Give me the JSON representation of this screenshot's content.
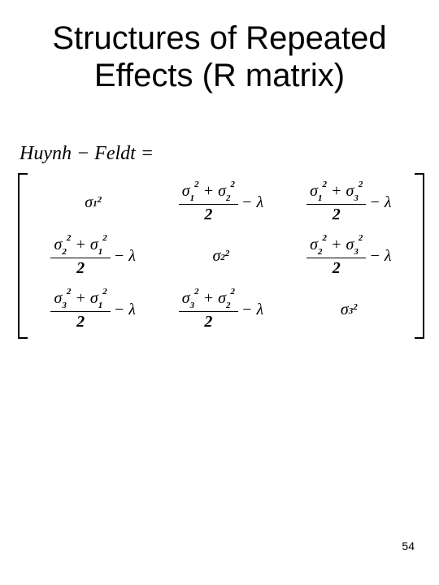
{
  "title_line1": "Structures of Repeated",
  "title_line2": "Effects (R matrix)",
  "eq_label": "Huynh − Feldt =",
  "denom": "2",
  "minus": "−",
  "lambda": "λ",
  "plus": "+",
  "sigma": "σ",
  "sq": "2",
  "idx": {
    "1": "1",
    "2": "2",
    "3": "3"
  },
  "pagenum": "54"
}
